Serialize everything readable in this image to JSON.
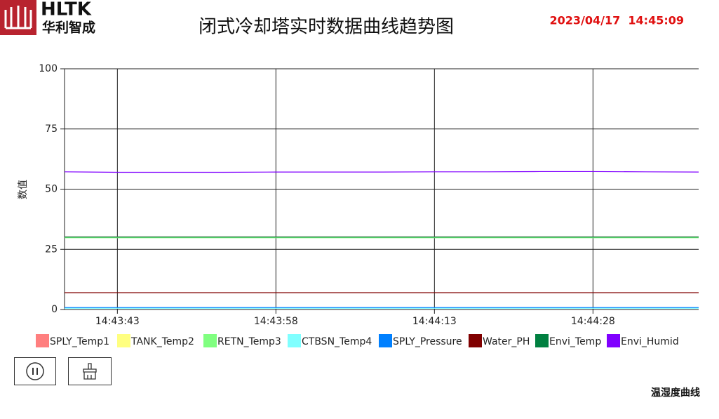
{
  "header": {
    "logo_text": "HLTK",
    "logo_subtitle": "华利智成",
    "title": "闭式冷却塔实时数据曲线趋势图",
    "datetime": "2023/04/17  14:45:09"
  },
  "chart_data": {
    "type": "line",
    "y_label": "数值",
    "x": [
      "14:43:38",
      "14:43:43",
      "14:43:48",
      "14:43:53",
      "14:43:58",
      "14:44:03",
      "14:44:08",
      "14:44:13",
      "14:44:18",
      "14:44:23",
      "14:44:28",
      "14:44:33",
      "14:44:38"
    ],
    "xlim": [
      "14:43:38",
      "14:44:38"
    ],
    "xticks": [
      "14:43:43",
      "14:43:58",
      "14:44:13",
      "14:44:28"
    ],
    "ylim": [
      0,
      100
    ],
    "yticks": [
      0,
      25,
      50,
      75,
      100
    ],
    "grid": true,
    "series": [
      {
        "name": "SPLY_Temp1",
        "color": "#ff7f7f",
        "values": [
          30.2,
          30.2,
          30.2,
          30.2,
          30.2,
          30.2,
          30.2,
          30.2,
          30.2,
          30.2,
          30.2,
          30.2,
          30.2
        ]
      },
      {
        "name": "TANK_Temp2",
        "color": "#ffff80",
        "values": [
          30,
          30,
          30,
          30,
          30,
          30,
          30,
          30,
          30,
          30,
          30,
          30,
          30
        ]
      },
      {
        "name": "RETN_Temp3",
        "color": "#80ff80",
        "values": [
          29.8,
          29.8,
          29.8,
          29.8,
          29.8,
          29.8,
          29.8,
          29.8,
          29.8,
          29.8,
          29.8,
          29.8,
          29.8
        ]
      },
      {
        "name": "CTBSN_Temp4",
        "color": "#80ffff",
        "values": [
          0.5,
          0.5,
          0.5,
          0.5,
          0.5,
          0.5,
          0.5,
          0.5,
          0.5,
          0.5,
          0.5,
          0.5,
          0.5
        ]
      },
      {
        "name": "SPLY_Pressure",
        "color": "#0080ff",
        "values": [
          0.8,
          0.8,
          0.8,
          0.8,
          0.8,
          0.8,
          0.8,
          0.8,
          0.8,
          0.8,
          0.8,
          0.8,
          0.8
        ]
      },
      {
        "name": "Water_PH",
        "color": "#800000",
        "values": [
          7,
          7,
          7,
          7,
          7,
          7,
          7,
          7,
          7,
          7,
          7,
          7,
          7
        ]
      },
      {
        "name": "Envi_Temp",
        "color": "#008040",
        "values": [
          30.1,
          30.1,
          30.1,
          30.1,
          30.1,
          30.1,
          30.1,
          30.1,
          30.1,
          30.1,
          30.1,
          30.1,
          30.1
        ]
      },
      {
        "name": "Envi_Humid",
        "color": "#8000ff",
        "values": [
          57.2,
          57,
          57,
          57,
          57.1,
          57.1,
          57.1,
          57.2,
          57.2,
          57.3,
          57.3,
          57.2,
          57.1
        ]
      }
    ]
  },
  "footer_label": "温湿度曲线"
}
